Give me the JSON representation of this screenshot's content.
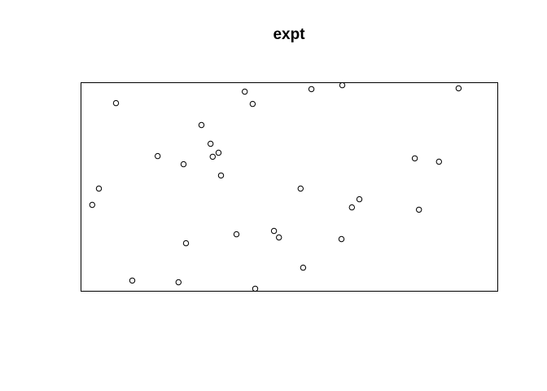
{
  "chart_data": {
    "type": "scatter",
    "title": "expt",
    "xlabel": "",
    "ylabel": "",
    "axes_shown": false,
    "grid": false,
    "xlim": [
      0,
      100
    ],
    "ylim": [
      0,
      100
    ],
    "points": [
      {
        "x": 2.7,
        "y": 41.4
      },
      {
        "x": 4.3,
        "y": 49.2
      },
      {
        "x": 8.4,
        "y": 90.2
      },
      {
        "x": 12.3,
        "y": 5.1
      },
      {
        "x": 18.4,
        "y": 64.8
      },
      {
        "x": 23.4,
        "y": 4.3
      },
      {
        "x": 24.6,
        "y": 60.9
      },
      {
        "x": 25.2,
        "y": 23.0
      },
      {
        "x": 28.9,
        "y": 79.7
      },
      {
        "x": 31.1,
        "y": 70.7
      },
      {
        "x": 31.6,
        "y": 64.5
      },
      {
        "x": 33.0,
        "y": 66.4
      },
      {
        "x": 33.6,
        "y": 55.5
      },
      {
        "x": 37.3,
        "y": 27.3
      },
      {
        "x": 39.3,
        "y": 95.7
      },
      {
        "x": 41.2,
        "y": 89.8
      },
      {
        "x": 41.8,
        "y": 1.2
      },
      {
        "x": 46.3,
        "y": 28.9
      },
      {
        "x": 47.5,
        "y": 25.8
      },
      {
        "x": 52.7,
        "y": 49.2
      },
      {
        "x": 53.3,
        "y": 11.3
      },
      {
        "x": 55.3,
        "y": 96.9
      },
      {
        "x": 62.5,
        "y": 25.0
      },
      {
        "x": 62.7,
        "y": 98.8
      },
      {
        "x": 65.0,
        "y": 40.2
      },
      {
        "x": 66.8,
        "y": 44.1
      },
      {
        "x": 80.1,
        "y": 63.7
      },
      {
        "x": 81.1,
        "y": 39.1
      },
      {
        "x": 85.9,
        "y": 62.1
      },
      {
        "x": 90.6,
        "y": 97.3
      }
    ]
  }
}
